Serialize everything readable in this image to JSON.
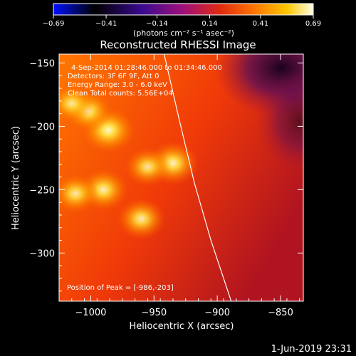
{
  "chart_data": {
    "type": "heatmap",
    "title": "Reconstructed RHESSI Image",
    "xlabel": "Heliocentric X (arcsec)",
    "ylabel": "Heliocentric Y (arcsec)",
    "xlim": [
      -1025,
      -832
    ],
    "ylim": [
      -338,
      -143
    ],
    "xticks": [
      -1000,
      -950,
      -900,
      -850
    ],
    "yticks": [
      -150,
      -200,
      -250,
      -300
    ],
    "colorbar": {
      "label": "(photons cm⁻² s⁻¹ asec⁻²)",
      "range": [
        -0.69,
        0.69
      ],
      "ticks": [
        -0.69,
        -0.41,
        -0.14,
        0.14,
        0.41,
        0.69
      ],
      "tick_labels": [
        "−0.69",
        "−0.41",
        "−0.14",
        "0.14",
        "0.41",
        "0.69"
      ]
    },
    "annotations": [
      "4-Sep-2014 01:28:46.000 to 01:34:46.000",
      "Detectors: 3F 6F 9F, Att 0",
      "Energy Range: 3.0 - 6.0 keV",
      "Clean      Total counts: 5.56E+04"
    ],
    "peak_label": "Position of Peak = [-986,-203]",
    "peak": [
      -986,
      -203
    ],
    "sources": [
      {
        "x": -986,
        "y": -203,
        "intensity": 0.69
      },
      {
        "x": -1002,
        "y": -188,
        "intensity": 0.55
      },
      {
        "x": -1015,
        "y": -182,
        "intensity": 0.45
      },
      {
        "x": -935,
        "y": -229,
        "intensity": 0.62
      },
      {
        "x": -955,
        "y": -232,
        "intensity": 0.48
      },
      {
        "x": -990,
        "y": -250,
        "intensity": 0.58
      },
      {
        "x": -1012,
        "y": -253,
        "intensity": 0.5
      },
      {
        "x": -960,
        "y": -273,
        "intensity": 0.55
      }
    ],
    "limb": [
      [
        -942,
        -143
      ],
      [
        -930,
        -195
      ],
      [
        -918,
        -245
      ],
      [
        -905,
        -290
      ],
      [
        -889,
        -338
      ]
    ]
  },
  "footer": {
    "date": "1-Jun-2019 23:31"
  }
}
